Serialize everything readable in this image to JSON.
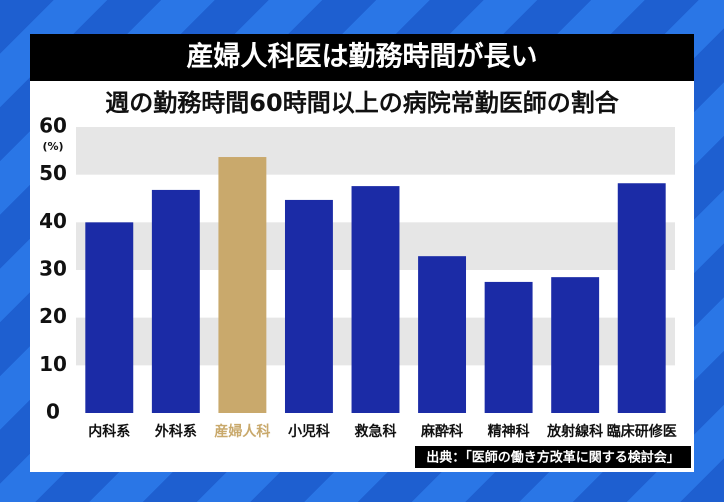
{
  "chart_data": {
    "type": "bar",
    "title": "産婦人科医は勤務時間が長い",
    "subtitle": "週の勤務時間60時間以上の病院常勤医師の割合",
    "y_unit": "(%)",
    "categories": [
      "内科系",
      "外科系",
      "産婦人科",
      "小児科",
      "救急科",
      "麻酔科",
      "精神科",
      "放射線科",
      "臨床研修医"
    ],
    "values": [
      40,
      46.8,
      53.7,
      44.7,
      47.6,
      32.9,
      27.5,
      28.5,
      48.2
    ],
    "colors": [
      "#1b2ba6",
      "#1b2ba6",
      "#c9a96c",
      "#1b2ba6",
      "#1b2ba6",
      "#1b2ba6",
      "#1b2ba6",
      "#1b2ba6",
      "#1b2ba6"
    ],
    "ylim": [
      0,
      60
    ],
    "yticks": [
      0,
      10,
      20,
      30,
      40,
      50,
      60
    ],
    "grid_bands": true,
    "source": "出典：「医師の働き方改革に関する検討会」"
  }
}
